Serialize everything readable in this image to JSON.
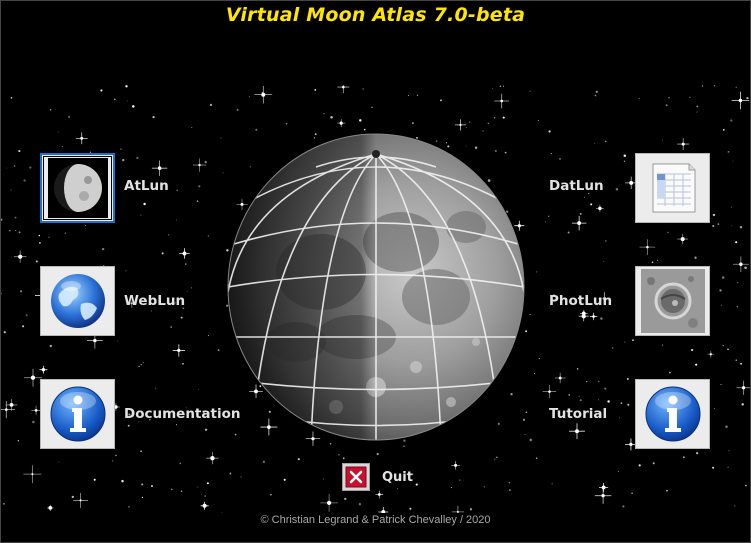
{
  "window": {
    "title": "Virtual Moon Atlas 7.0-beta"
  },
  "launcher": {
    "left": [
      {
        "label": "AtLun",
        "icon": "moon-phase-icon"
      },
      {
        "label": "WebLun",
        "icon": "globe-icon"
      },
      {
        "label": "Documentation",
        "icon": "info-icon"
      }
    ],
    "right": [
      {
        "label": "DatLun",
        "icon": "spreadsheet-icon"
      },
      {
        "label": "PhotLun",
        "icon": "crater-photo-icon"
      },
      {
        "label": "Tutorial",
        "icon": "info-icon"
      }
    ]
  },
  "quit": {
    "label": "Quit",
    "icon": "close-icon"
  },
  "footer": {
    "copyright": "© Christian Legrand & Patrick Chevalley / 2020"
  },
  "colors": {
    "title": "#ffe600",
    "background": "#000000",
    "label": "#e2e2e2",
    "selection": "#1b6fd6",
    "quit_red": "#c8102e"
  }
}
